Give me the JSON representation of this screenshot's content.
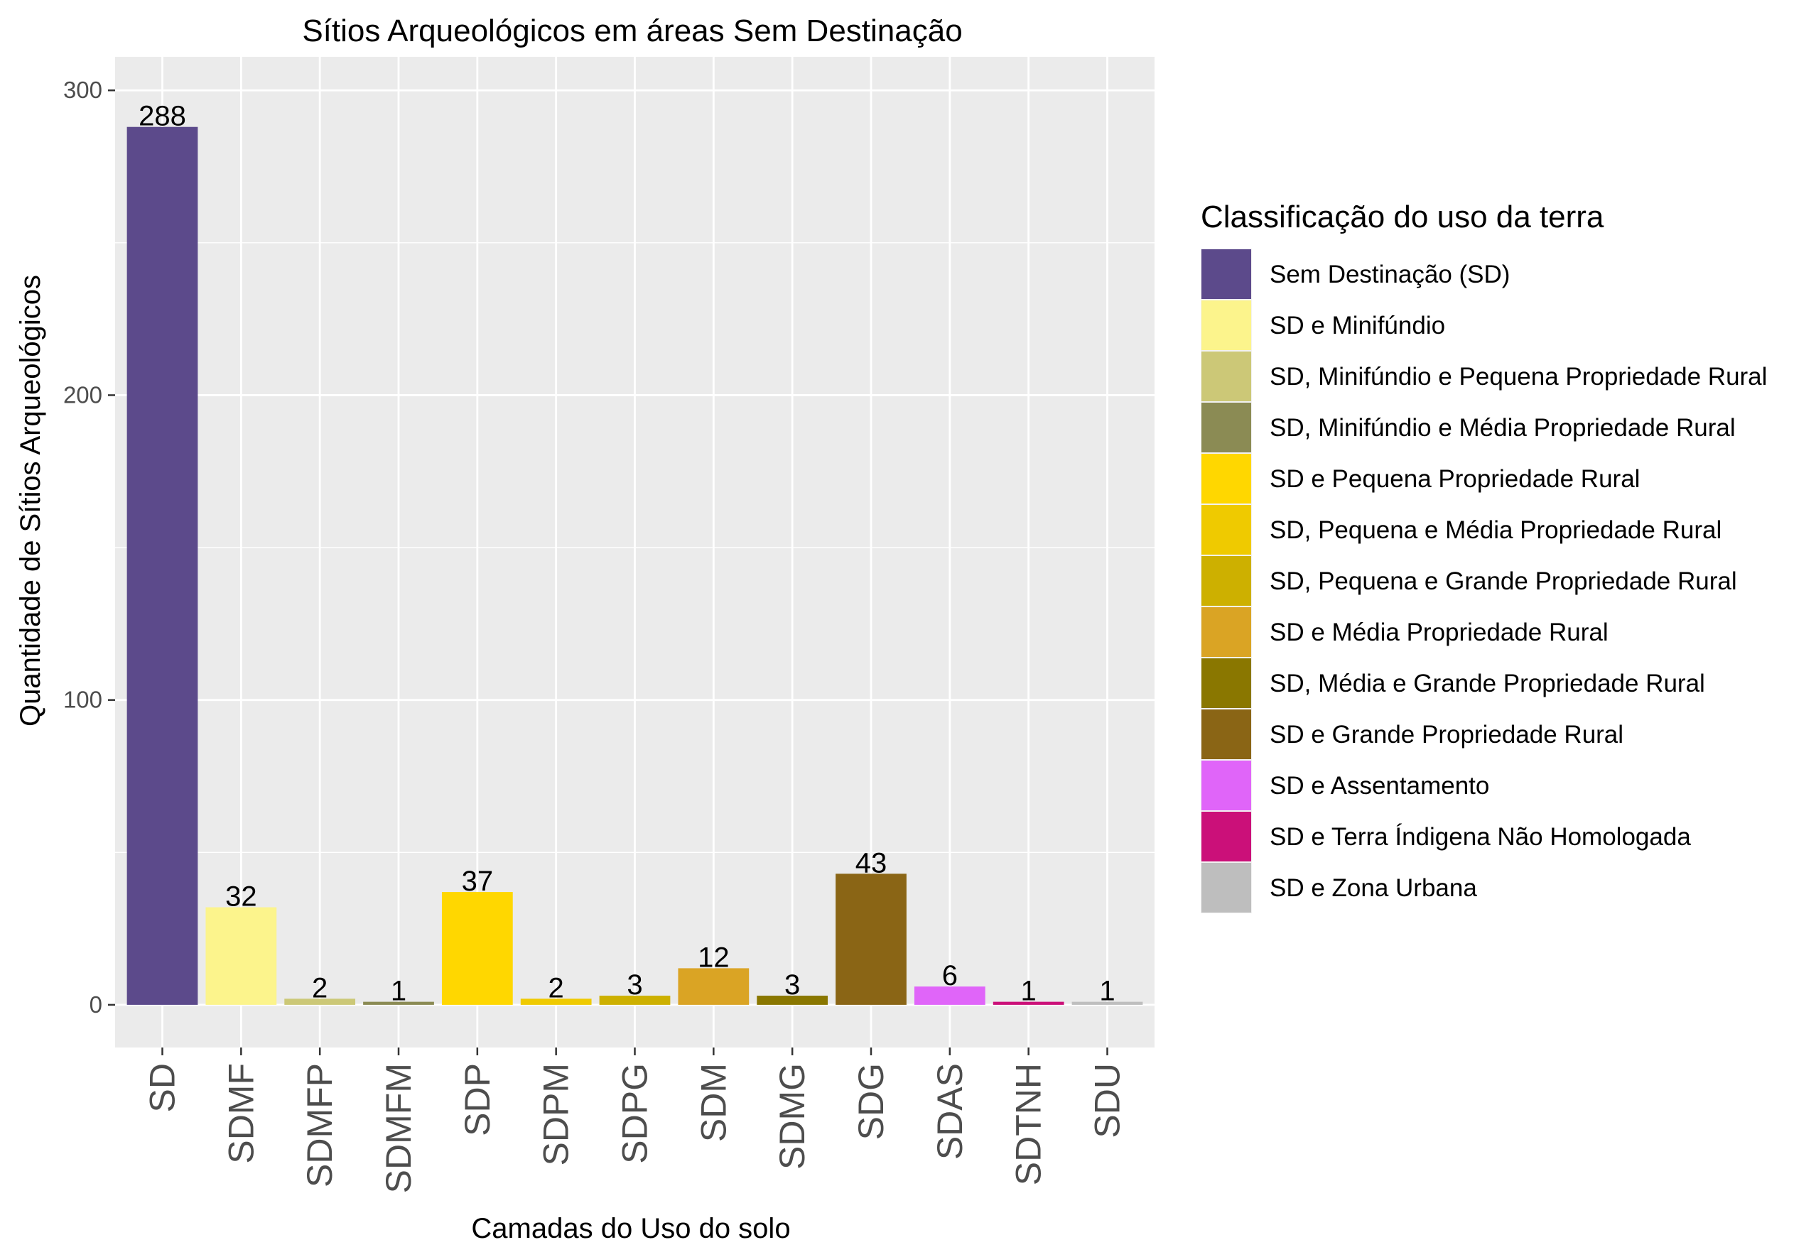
{
  "chart_data": {
    "type": "bar",
    "title": "Sítios Arqueológicos em áreas Sem Destinação",
    "xlabel": "Camadas do Uso do solo",
    "ylabel": "Quantidade de Sítios Arqueológicos",
    "ylim": [
      -14,
      311
    ],
    "yticks": [
      0,
      100,
      200,
      300
    ],
    "grid": true,
    "categories": [
      "SD",
      "SDMF",
      "SDMFP",
      "SDMFM",
      "SDP",
      "SDPM",
      "SDPG",
      "SDM",
      "SDMG",
      "SDG",
      "SDAS",
      "SDTNH",
      "SDU"
    ],
    "values": [
      288,
      32,
      2,
      1,
      37,
      2,
      3,
      12,
      3,
      43,
      6,
      1,
      1
    ],
    "colors": [
      "#5c4a8b",
      "#fcf48c",
      "#ccc877",
      "#8b8b54",
      "#ffd700",
      "#efca00",
      "#cdb000",
      "#daa424",
      "#8a7700",
      "#8a6515",
      "#e065f9",
      "#cb1079",
      "#bebebe"
    ],
    "legend": {
      "title": "Classificação do uso da terra",
      "position": "right",
      "items": [
        "Sem Destinação (SD)",
        "SD e Minifúndio",
        "SD, Minifúndio e Pequena Propriedade Rural",
        "SD, Minifúndio e Média Propriedade Rural",
        "SD e Pequena Propriedade Rural",
        "SD, Pequena e Média Propriedade Rural",
        "SD, Pequena e Grande Propriedade Rural",
        "SD e Média Propriedade Rural",
        "SD, Média e Grande Propriedade Rural",
        "SD e Grande Propriedade Rural",
        "SD e Assentamento",
        "SD e Terra Índigena Não Homologada",
        "SD e Zona Urbana"
      ]
    },
    "panel_background": "#ebebeb",
    "grid_color": "#ffffff"
  }
}
